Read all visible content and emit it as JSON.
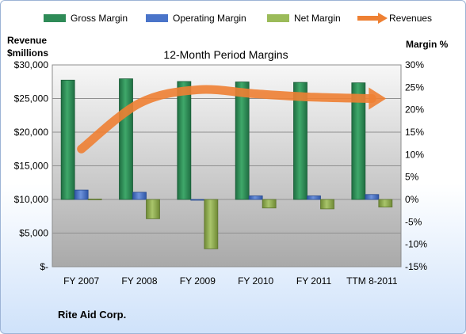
{
  "chart_data": {
    "type": "bar",
    "title": "12-Month Period Margins",
    "company": "Rite Aid Corp.",
    "categories": [
      "FY 2007",
      "FY 2008",
      "FY 2009",
      "FY 2010",
      "FY 2011",
      "TTM 8-2011"
    ],
    "left_axis": {
      "label_line1": "Revenue",
      "label_line2": "$millions",
      "ticks": [
        0,
        5000,
        10000,
        15000,
        20000,
        25000,
        30000
      ],
      "tick_labels": [
        "$-",
        "$5,000",
        "$10,000",
        "$15,000",
        "$20,000",
        "$25,000",
        "$30,000"
      ],
      "ylim": [
        0,
        30000
      ]
    },
    "right_axis": {
      "label": "Margin %",
      "ticks": [
        -15,
        -10,
        -5,
        0,
        5,
        10,
        15,
        20,
        25,
        30
      ],
      "tick_labels": [
        "-15%",
        "-10%",
        "-5%",
        "0%",
        "5%",
        "10%",
        "15%",
        "20%",
        "25%",
        "30%"
      ],
      "ylim": [
        -15,
        30
      ]
    },
    "series": [
      {
        "name": "Gross Margin",
        "type": "bar",
        "axis": "right",
        "color": "#2e8b57",
        "values": [
          26.6,
          26.9,
          26.3,
          26.2,
          26.1,
          26.0
        ]
      },
      {
        "name": "Operating Margin",
        "type": "bar",
        "axis": "right",
        "color": "#4a74c9",
        "values": [
          2.1,
          1.6,
          -0.1,
          0.8,
          0.8,
          1.1
        ]
      },
      {
        "name": "Net Margin",
        "type": "bar",
        "axis": "right",
        "color": "#9bbb59",
        "values": [
          0.1,
          -4.3,
          -11.0,
          -1.9,
          -2.1,
          -1.7
        ]
      },
      {
        "name": "Revenues",
        "type": "line",
        "axis": "left",
        "color": "#ee8033",
        "values": [
          17500,
          24300,
          26300,
          25700,
          25200,
          25000
        ]
      }
    ],
    "grid": true,
    "legend": "top"
  }
}
